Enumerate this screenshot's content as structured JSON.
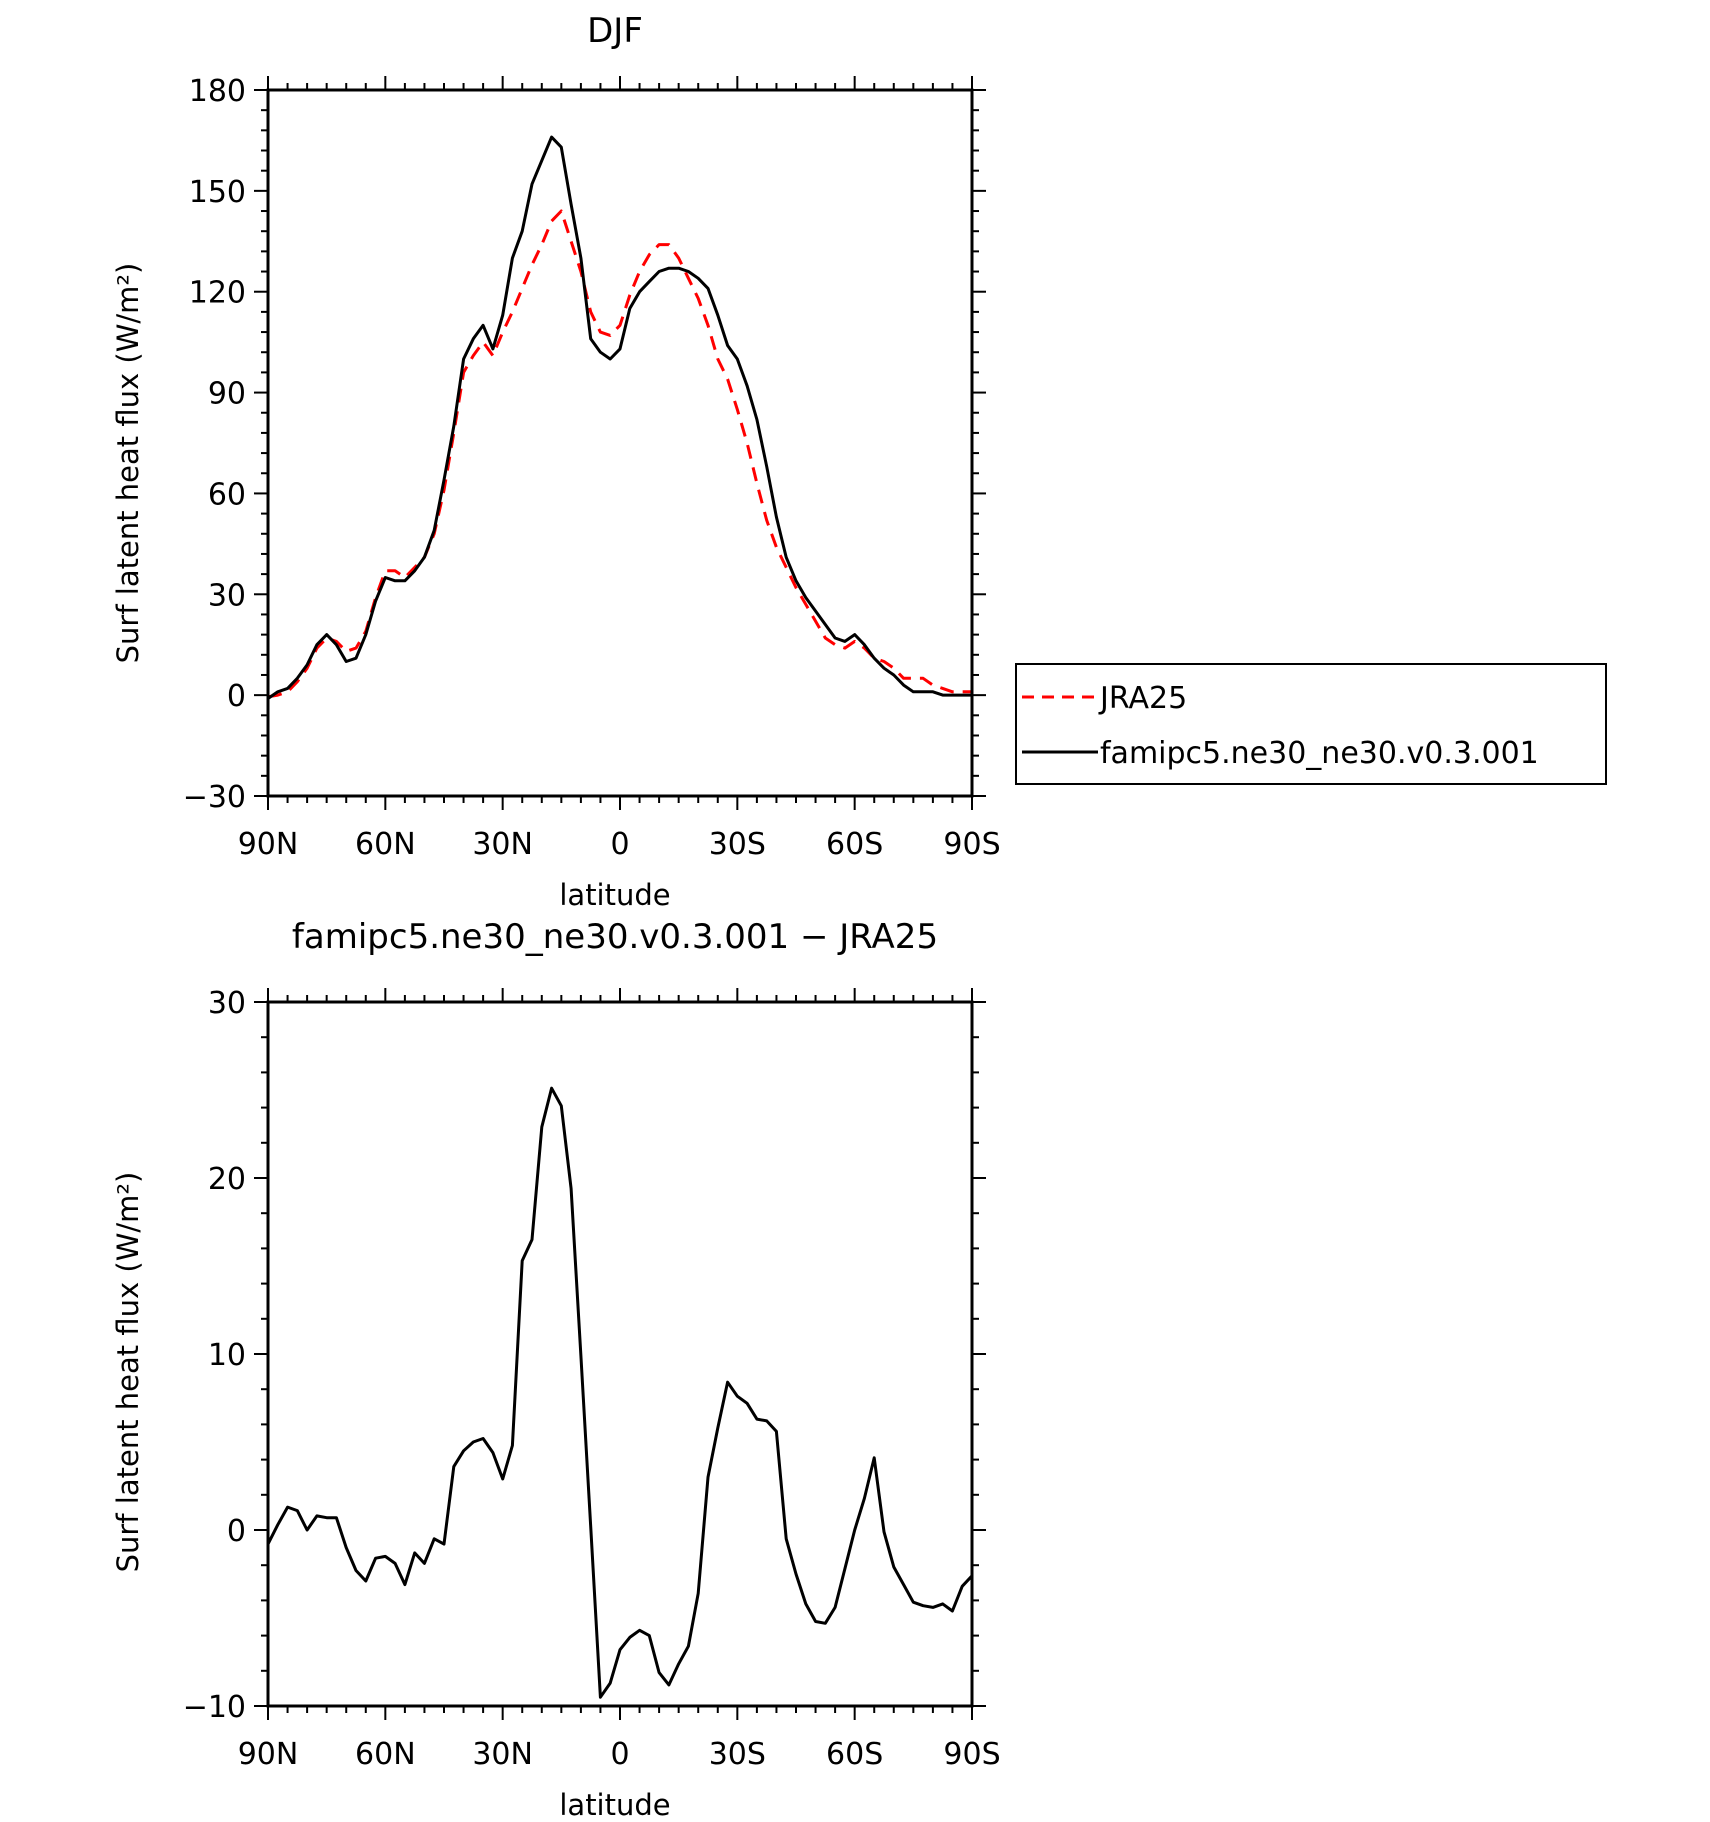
{
  "chart_data": [
    {
      "type": "line",
      "title": "DJF",
      "xlabel": "latitude",
      "ylabel": "Surf latent heat flux (W/m²)",
      "xlim": [
        90,
        -90
      ],
      "ylim": [
        -30,
        180
      ],
      "x_ticks": [
        90,
        60,
        30,
        0,
        -30,
        -60,
        -90
      ],
      "x_tick_labels": [
        "90N",
        "60N",
        "30N",
        "0",
        "30S",
        "60S",
        "90S"
      ],
      "y_ticks": [
        -30,
        0,
        30,
        60,
        90,
        120,
        150,
        180
      ],
      "y_tick_labels": [
        "−30",
        "0",
        "30",
        "60",
        "90",
        "120",
        "150",
        "180"
      ],
      "legend_position": "right",
      "series": [
        {
          "name": "JRA25",
          "color": "#ff0000",
          "dash": "dashed",
          "x": [
            90,
            87.5,
            85,
            82.5,
            80,
            77.5,
            75,
            72.5,
            70,
            67.5,
            65,
            62.5,
            60,
            57.5,
            55,
            52.5,
            50,
            47.5,
            45,
            42.5,
            40,
            37.5,
            35,
            32.5,
            30,
            27.5,
            25,
            22.5,
            20,
            17.5,
            15,
            12.5,
            10,
            7.5,
            5,
            2.5,
            0,
            -2.5,
            -5,
            -7.5,
            -10,
            -12.5,
            -15,
            -17.5,
            -20,
            -22.5,
            -25,
            -27.5,
            -30,
            -32.5,
            -35,
            -37.5,
            -40,
            -42.5,
            -45,
            -47.5,
            -50,
            -52.5,
            -55,
            -57.5,
            -60,
            -62.5,
            -65,
            -67.5,
            -70,
            -72.5,
            -75,
            -77.5,
            -80,
            -82.5,
            -85,
            -87.5,
            -90
          ],
          "y": [
            -0.5,
            0,
            1,
            4,
            8,
            14,
            17,
            16,
            13,
            14,
            19,
            29,
            37,
            37,
            35,
            38,
            41,
            48,
            61,
            78,
            96,
            101,
            105,
            101,
            108,
            114,
            121,
            128,
            134,
            141,
            144,
            135,
            126,
            114,
            108,
            107,
            110,
            119,
            126,
            131,
            134,
            134,
            130,
            124,
            118,
            110,
            100,
            94,
            85,
            75,
            63,
            52,
            44,
            38,
            32,
            27,
            22,
            17,
            15,
            14,
            16,
            14,
            11,
            10,
            8,
            5,
            5,
            5,
            3,
            2,
            1,
            1,
            1
          ],
          "x_data_range_note": ""
        },
        {
          "name": "famipc5.ne30_ne30.v0.3.001",
          "color": "#000000",
          "dash": "solid",
          "x": [
            90,
            87.5,
            85,
            82.5,
            80,
            77.5,
            75,
            72.5,
            70,
            67.5,
            65,
            62.5,
            60,
            57.5,
            55,
            52.5,
            50,
            47.5,
            45,
            42.5,
            40,
            37.5,
            35,
            32.5,
            30,
            27.5,
            25,
            22.5,
            20,
            17.5,
            15,
            12.5,
            10,
            7.5,
            5,
            2.5,
            0,
            -2.5,
            -5,
            -7.5,
            -10,
            -12.5,
            -15,
            -17.5,
            -20,
            -22.5,
            -25,
            -27.5,
            -30,
            -32.5,
            -35,
            -37.5,
            -40,
            -42.5,
            -45,
            -47.5,
            -50,
            -52.5,
            -55,
            -57.5,
            -60,
            -62.5,
            -65,
            -67.5,
            -70,
            -72.5,
            -75,
            -77.5,
            -80,
            -82.5,
            -85,
            -87.5,
            -90
          ],
          "y": [
            -1,
            1,
            2,
            5,
            9,
            15,
            18,
            15,
            10,
            11,
            18,
            28,
            35,
            34,
            34,
            37,
            41,
            49,
            64,
            80,
            100,
            106,
            110,
            103,
            113,
            130,
            138,
            152,
            159,
            166,
            163,
            146,
            130,
            106,
            102,
            100,
            103,
            115,
            120,
            123,
            126,
            127,
            127,
            126,
            124,
            121,
            113,
            104,
            100,
            92,
            82,
            68,
            53,
            41,
            34,
            29,
            25,
            21,
            17,
            16,
            18,
            15,
            11,
            8,
            6,
            3,
            1,
            1,
            1,
            0,
            0,
            0,
            0
          ],
          "x_data_range_note": ""
        }
      ]
    },
    {
      "type": "line",
      "title": "famipc5.ne30_ne30.v0.3.001 − JRA25",
      "xlabel": "latitude",
      "ylabel": "Surf latent heat flux (W/m²)",
      "xlim": [
        90,
        -90
      ],
      "ylim": [
        -10,
        30
      ],
      "x_ticks": [
        90,
        60,
        30,
        0,
        -30,
        -60,
        -90
      ],
      "x_tick_labels": [
        "90N",
        "60N",
        "30N",
        "0",
        "30S",
        "60S",
        "90S"
      ],
      "y_ticks": [
        -10,
        0,
        10,
        20,
        30
      ],
      "y_tick_labels": [
        "−10",
        "0",
        "10",
        "20",
        "30"
      ],
      "series": [
        {
          "color": "#000000",
          "dash": "solid",
          "x": [
            90,
            87.5,
            85,
            82.5,
            80,
            77.5,
            75,
            72.5,
            70,
            67.5,
            65,
            62.5,
            60,
            57.5,
            55,
            52.5,
            50,
            47.5,
            45,
            42.5,
            40,
            37.5,
            35,
            32.5,
            30,
            27.5,
            25,
            22.5,
            20,
            17.5,
            15,
            12.5,
            10,
            7.5,
            5,
            2.5,
            0,
            -2.5,
            -5,
            -7.5,
            -10,
            -12.5,
            -15,
            -17.5,
            -20,
            -22.5,
            -25,
            -27.5,
            -30,
            -32.5,
            -35,
            -37.5,
            -40,
            -42.5,
            -45,
            -47.5,
            -50,
            -52.5,
            -55,
            -57.5,
            -60,
            -62.5,
            -65,
            -67.5,
            -70,
            -72.5,
            -75,
            -77.5,
            -80,
            -82.5,
            -85,
            -87.5,
            -90
          ],
          "y": [
            -0.8,
            0.3,
            1.3,
            1.1,
            0.0,
            0.8,
            0.7,
            0.7,
            -1.0,
            -2.3,
            -2.9,
            -1.6,
            -1.5,
            -1.9,
            -3.1,
            -1.3,
            -1.9,
            -0.5,
            -0.8,
            3.6,
            4.5,
            5.0,
            5.2,
            4.4,
            2.9,
            4.8,
            15.3,
            16.5,
            22.9,
            25.1,
            24.1,
            19.4,
            9.9,
            0.2,
            -9.5,
            -8.7,
            -6.8,
            -6.1,
            -5.7,
            -6.0,
            -8.1,
            -8.8,
            -7.6,
            -6.6,
            -3.6,
            3.0,
            5.8,
            8.4,
            7.6,
            7.2,
            6.3,
            6.2,
            5.6,
            -0.5,
            -2.5,
            -4.2,
            -5.2,
            -5.3,
            -4.4,
            -2.2,
            0.0,
            1.8,
            4.1,
            -0.1,
            -2.1,
            -3.1,
            -4.1,
            -4.3,
            -4.4,
            -4.2,
            -4.6,
            -3.2,
            -2.6
          ],
          "x_data_range_note": ""
        }
      ]
    }
  ]
}
